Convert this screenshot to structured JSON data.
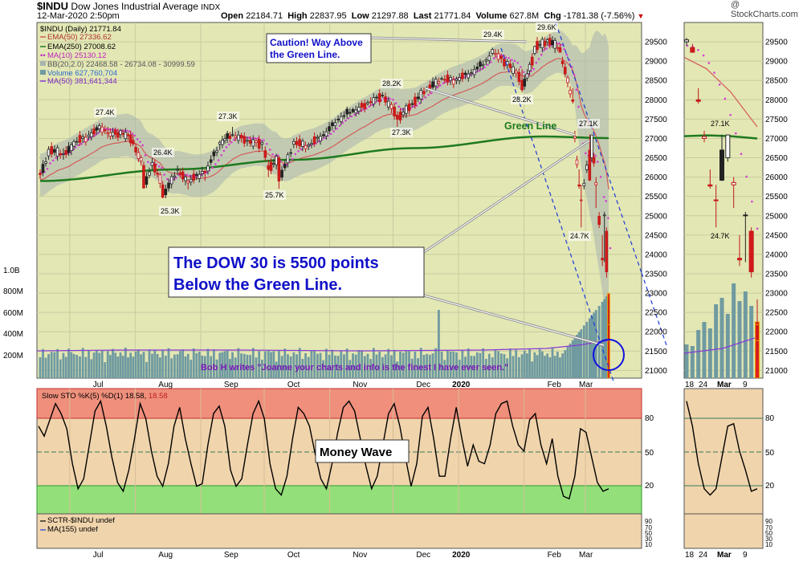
{
  "header": {
    "symbol": "$INDU",
    "name": "Dow Jones Industrial Average",
    "exchange": "INDX",
    "date_time": "12-Mar-2020 2:50pm",
    "open_label": "Open",
    "open": "22184.71",
    "high_label": "High",
    "high": "22837.95",
    "low_label": "Low",
    "low": "21297.88",
    "last_label": "Last",
    "last": "21771.84",
    "volume_label": "Volume",
    "volume": "627.8M",
    "chg_label": "Chg",
    "chg": "-1781.38 (-7.56%)",
    "watermark": "@ StockCharts.com"
  },
  "legend": {
    "line1": "$INDU (Daily) 21771.84",
    "line2": "EMA(50) 27336.62",
    "line3": "EMA(250) 27008.62",
    "line4": "MA(10) 25130.12",
    "line5": "BB(20,2.0) 22468.58 - 26734.08 - 30999.59",
    "line6": "Volume 627,760,704",
    "line7": "MA(50) 381,641,344"
  },
  "annotations": {
    "caution": "Caution! Way Above the Green Line.",
    "caution_l1": "Caution! Way Above",
    "caution_l2": "the Green Line.",
    "green_line": "Green Line",
    "dow_l1": "The DOW 30 is 5500 points",
    "dow_l2": "Below the Green Line.",
    "bob": "Bob H writes \"Joanne your charts and info is the finest I have ever seen.\"",
    "money_wave": "Money Wave"
  },
  "stochastic": {
    "legend_a": "Slow STO %K(5) %D(1) 18.58, ",
    "legend_b": "18.58",
    "levels": [
      "80",
      "50",
      "20"
    ]
  },
  "sctr": {
    "legend1": "SCTR-$INDU undef",
    "legend2": "MA(155) undef",
    "levels": [
      "90",
      "70",
      "50",
      "30",
      "10"
    ]
  },
  "colors": {
    "price_bg": "#e3e7b4",
    "stoch_bg": "#f0d4ac",
    "overbought": "#ef8f7c",
    "oversold": "#93e07a",
    "ema250": "#1e7a1e",
    "ema50": "#d45a5a",
    "ma10": "#d240d2",
    "volume": "#6f9aa0",
    "annot_blue": "#1010c8",
    "bob_purple": "#7a18b8"
  },
  "chart_data": [
    {
      "type": "candlestick",
      "title": "$INDU (Daily)",
      "ylim": [
        20800,
        30000
      ],
      "y_ticks": [
        "29500",
        "29000",
        "28500",
        "28000",
        "27500",
        "27000",
        "26500",
        "26000",
        "25500",
        "25000",
        "24500",
        "24000",
        "23500",
        "23000",
        "22500",
        "22000",
        "21500",
        "21000"
      ],
      "x_ticks": [
        "Jul",
        "Aug",
        "Sep",
        "Oct",
        "Nov",
        "Dec",
        "2020",
        "Feb",
        "Mar"
      ],
      "volume_ticks": [
        "1.0B",
        "800M",
        "600M",
        "400M",
        "200M"
      ],
      "peak_labels": [
        "27.4K",
        "26.4K",
        "25.3K",
        "27.3K",
        "25.7K",
        "28.2K",
        "27.3K",
        "29.4K",
        "29.6K",
        "28.2K",
        "27.1K",
        "24.7K"
      ],
      "series": [
        {
          "name": "EMA(250)",
          "x": [
            "Jun 17",
            "Aug 20",
            "Oct 15",
            "Dec 11",
            "Feb 10",
            "Mar 12"
          ],
          "y": [
            25900,
            26200,
            26450,
            26750,
            27050,
            27010
          ]
        },
        {
          "name": "EMA(50)",
          "x": [
            "Jun 17",
            "Aug 15",
            "Oct 10",
            "Dec 10",
            "Feb 12",
            "Mar 12"
          ],
          "y": [
            26200,
            26300,
            26600,
            27900,
            28850,
            27340
          ]
        }
      ],
      "candles": [
        [
          "Jun 17",
          26100,
          26200,
          25950,
          26060
        ],
        [
          "Jun 21",
          26550,
          26800,
          26450,
          26720
        ],
        [
          "Jun 28",
          26600,
          26750,
          26450,
          26600
        ],
        [
          "Jul 3",
          26800,
          26980,
          26700,
          26920
        ],
        [
          "Jul 10",
          27050,
          27200,
          26950,
          27090
        ],
        [
          "Jul 15",
          27250,
          27400,
          27150,
          27330
        ],
        [
          "Jul 19",
          27150,
          27300,
          27000,
          27150
        ],
        [
          "Jul 25",
          27100,
          27250,
          27000,
          27200
        ],
        [
          "Jul 31",
          26950,
          27100,
          26800,
          26860
        ],
        [
          "Aug 5",
          26300,
          26400,
          25700,
          25720
        ],
        [
          "Aug 9",
          26300,
          26500,
          26200,
          26380
        ],
        [
          "Aug 14",
          25800,
          25900,
          25450,
          25480
        ],
        [
          "Aug 21",
          26200,
          26300,
          26050,
          26200
        ],
        [
          "Aug 26",
          25850,
          25950,
          25680,
          25900
        ],
        [
          "Sep 3",
          26150,
          26200,
          25900,
          26120
        ],
        [
          "Sep 10",
          26850,
          26950,
          26700,
          26900
        ],
        [
          "Sep 16",
          27100,
          27300,
          27050,
          27100
        ],
        [
          "Sep 23",
          26950,
          27050,
          26800,
          26950
        ],
        [
          "Sep 30",
          26850,
          26950,
          26700,
          26900
        ],
        [
          "Oct 3",
          26300,
          26450,
          26000,
          26200
        ],
        [
          "Oct 8",
          26500,
          26550,
          25700,
          25900
        ],
        [
          "Oct 15",
          26850,
          27000,
          26750,
          26920
        ],
        [
          "Oct 22",
          26800,
          26900,
          26700,
          26830
        ],
        [
          "Oct 29",
          27100,
          27200,
          27000,
          27070
        ],
        [
          "Nov 5",
          27500,
          27600,
          27400,
          27490
        ],
        [
          "Nov 12",
          27750,
          27800,
          27650,
          27690
        ],
        [
          "Nov 19",
          27900,
          28000,
          27850,
          27930
        ],
        [
          "Nov 26",
          28100,
          28200,
          28050,
          28120
        ],
        [
          "Dec 3",
          27600,
          27700,
          27300,
          27500
        ],
        [
          "Dec 10",
          27900,
          28000,
          27800,
          27880
        ],
        [
          "Dec 17",
          28300,
          28350,
          28200,
          28270
        ],
        [
          "Dec 24",
          28550,
          28600,
          28500,
          28550
        ],
        [
          "Dec 31",
          28500,
          28600,
          28400,
          28540
        ],
        [
          "Jan 7",
          28700,
          28800,
          28600,
          28700
        ],
        [
          "Jan 14",
          29000,
          29100,
          28900,
          29030
        ],
        [
          "Jan 17",
          29200,
          29350,
          29150,
          29300
        ],
        [
          "Jan 24",
          28900,
          29050,
          28800,
          28990
        ],
        [
          "Jan 31",
          28500,
          28800,
          28200,
          28260
        ],
        [
          "Feb 6",
          29200,
          29400,
          29150,
          29380
        ],
        [
          "Feb 12",
          29500,
          29600,
          29400,
          29550
        ],
        [
          "Feb 18",
          29350,
          29450,
          29250,
          29230
        ],
        [
          "Feb 24",
          28000,
          28300,
          27900,
          27960
        ],
        [
          "Feb 25",
          27000,
          27200,
          26900,
          27050
        ],
        [
          "Feb 27",
          25800,
          26200,
          25700,
          25770
        ],
        [
          "Feb 28",
          25400,
          25800,
          24700,
          25410
        ],
        [
          "Mar 3",
          26700,
          27100,
          25900,
          25920
        ],
        [
          "Mar 4",
          26500,
          27100,
          26400,
          27090
        ],
        [
          "Mar 6",
          25800,
          26000,
          25200,
          25860
        ],
        [
          "Mar 9",
          23900,
          24500,
          23700,
          23860
        ],
        [
          "Mar 10",
          25000,
          25100,
          23800,
          25020
        ],
        [
          "Mar 11",
          24600,
          24700,
          23400,
          23550
        ],
        [
          "Mar 12",
          22184.71,
          22837.95,
          21297.88,
          21771.84
        ]
      ]
    },
    {
      "type": "line",
      "title": "Slow STO %K(5) %D(1)",
      "ylim": [
        0,
        100
      ],
      "zones": {
        "overbought": [
          80,
          100
        ],
        "oversold": [
          10,
          20
        ],
        "midline": 50
      },
      "last_value": 18.58
    }
  ]
}
